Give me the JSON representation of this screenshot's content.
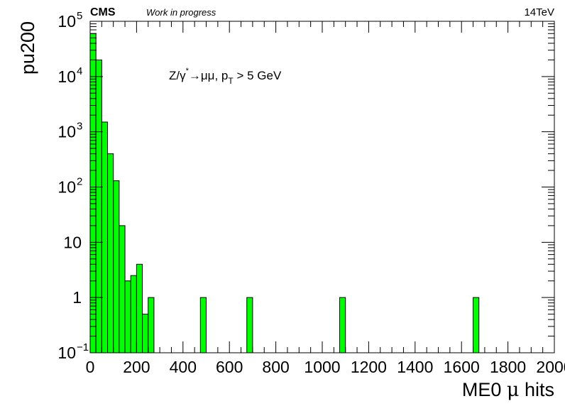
{
  "header": {
    "experiment": "CMS",
    "status": "Work in progress",
    "energy": "14TeV"
  },
  "chart_data": {
    "type": "bar",
    "ylabel": "pu200",
    "xlabel_main": "ME0 ",
    "xlabel_mu": "μ",
    "xlabel_tail": " hits",
    "log_y": true,
    "xlim": [
      0,
      2000
    ],
    "ylim": [
      0.1,
      100000
    ],
    "fill_color": "#00ff00",
    "bin_width": 25,
    "x_ticks": [
      "0",
      "200",
      "400",
      "600",
      "800",
      "1000",
      "1200",
      "1400",
      "1600",
      "1800",
      "2000"
    ],
    "y_ticks": [
      {
        "value": 0.1,
        "base": "10",
        "exp": "−1"
      },
      {
        "value": 1,
        "base": "1",
        "exp": ""
      },
      {
        "value": 10,
        "base": "10",
        "exp": ""
      },
      {
        "value": 100,
        "base": "10",
        "exp": "2"
      },
      {
        "value": 1000,
        "base": "10",
        "exp": "3"
      },
      {
        "value": 10000,
        "base": "10",
        "exp": "4"
      },
      {
        "value": 100000,
        "base": "10",
        "exp": "5"
      }
    ],
    "annotation": {
      "p1": "Z/γ",
      "star": "*",
      "p2": "→μμ, p",
      "sub": "T",
      "p3": " > 5 GeV"
    },
    "bins": [
      {
        "x0": 0,
        "value": 60000
      },
      {
        "x0": 25,
        "value": 20000
      },
      {
        "x0": 50,
        "value": 1500
      },
      {
        "x0": 75,
        "value": 400
      },
      {
        "x0": 100,
        "value": 130
      },
      {
        "x0": 125,
        "value": 20
      },
      {
        "x0": 150,
        "value": 2
      },
      {
        "x0": 175,
        "value": 2.5
      },
      {
        "x0": 200,
        "value": 4
      },
      {
        "x0": 225,
        "value": 0.5
      },
      {
        "x0": 250,
        "value": 1
      },
      {
        "x0": 475,
        "value": 1
      },
      {
        "x0": 675,
        "value": 1
      },
      {
        "x0": 1075,
        "value": 1
      },
      {
        "x0": 1650,
        "value": 1
      }
    ]
  }
}
